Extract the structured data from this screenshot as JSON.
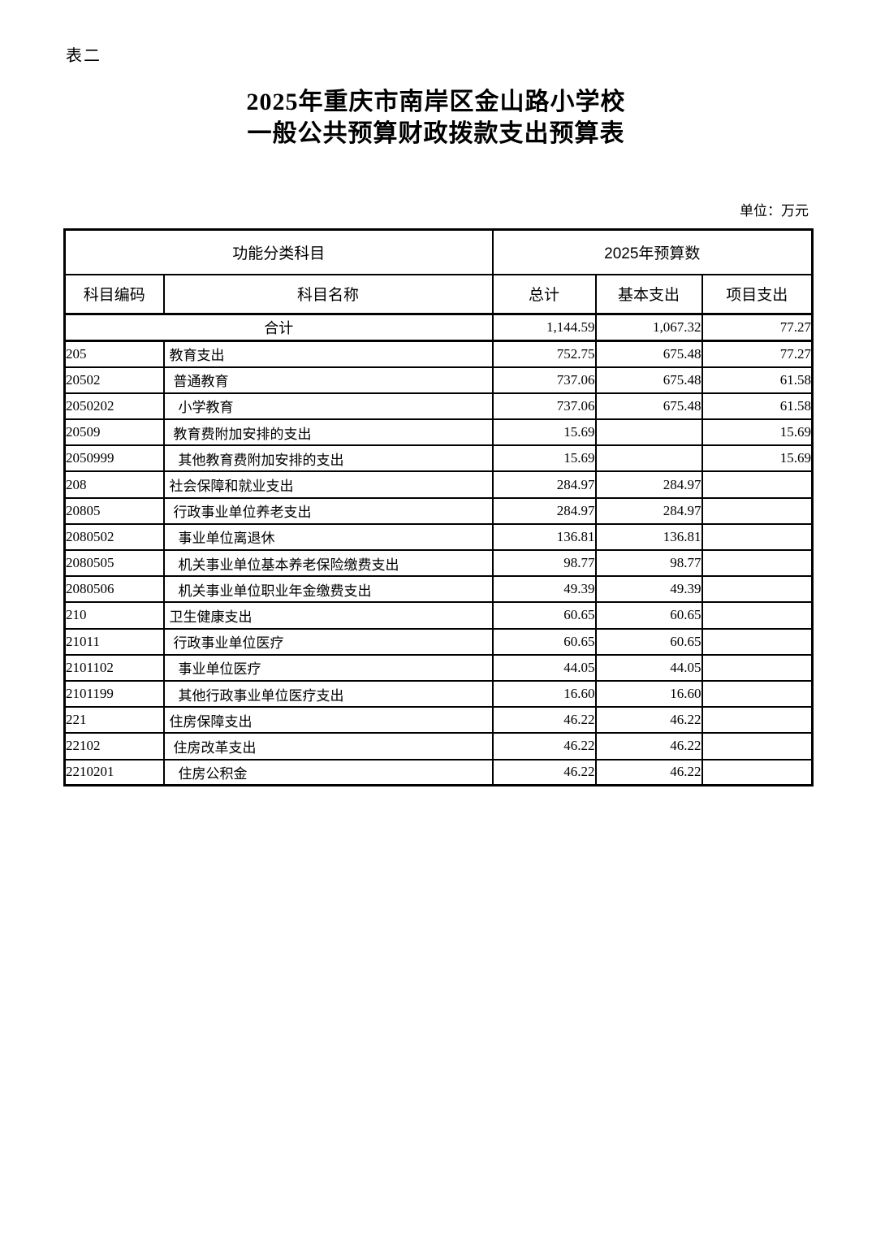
{
  "page": {
    "corner_tag": "表二",
    "title_line1": "2025年重庆市南岸区金山路小学校",
    "title_line2": "一般公共预算财政拨款支出预算表",
    "unit_note": "单位：万元"
  },
  "table": {
    "group_headers": {
      "function_classification": "功能分类科目",
      "budget_2025": "2025年预算数"
    },
    "columns": {
      "code": "科目编码",
      "name": "科目名称",
      "total": "总计",
      "basic": "基本支出",
      "project": "项目支出"
    },
    "total_row": {
      "label": "合计",
      "total": "1,144.59",
      "basic": "1,067.32",
      "project": "77.27"
    },
    "rows": [
      {
        "code": "205",
        "name": "教育支出",
        "level": 1,
        "total": "752.75",
        "basic": "675.48",
        "project": "77.27"
      },
      {
        "code": "20502",
        "name": "普通教育",
        "level": 2,
        "total": "737.06",
        "basic": "675.48",
        "project": "61.58"
      },
      {
        "code": "2050202",
        "name": "小学教育",
        "level": 3,
        "total": "737.06",
        "basic": "675.48",
        "project": "61.58"
      },
      {
        "code": "20509",
        "name": "教育费附加安排的支出",
        "level": 2,
        "total": "15.69",
        "basic": "",
        "project": "15.69"
      },
      {
        "code": "2050999",
        "name": "其他教育费附加安排的支出",
        "level": 3,
        "total": "15.69",
        "basic": "",
        "project": "15.69"
      },
      {
        "code": "208",
        "name": "社会保障和就业支出",
        "level": 1,
        "total": "284.97",
        "basic": "284.97",
        "project": ""
      },
      {
        "code": "20805",
        "name": "行政事业单位养老支出",
        "level": 2,
        "total": "284.97",
        "basic": "284.97",
        "project": ""
      },
      {
        "code": "2080502",
        "name": "事业单位离退休",
        "level": 3,
        "total": "136.81",
        "basic": "136.81",
        "project": ""
      },
      {
        "code": "2080505",
        "name": "机关事业单位基本养老保险缴费支出",
        "level": 3,
        "total": "98.77",
        "basic": "98.77",
        "project": ""
      },
      {
        "code": "2080506",
        "name": "机关事业单位职业年金缴费支出",
        "level": 3,
        "total": "49.39",
        "basic": "49.39",
        "project": ""
      },
      {
        "code": "210",
        "name": "卫生健康支出",
        "level": 1,
        "total": "60.65",
        "basic": "60.65",
        "project": ""
      },
      {
        "code": "21011",
        "name": "行政事业单位医疗",
        "level": 2,
        "total": "60.65",
        "basic": "60.65",
        "project": ""
      },
      {
        "code": "2101102",
        "name": "事业单位医疗",
        "level": 3,
        "total": "44.05",
        "basic": "44.05",
        "project": ""
      },
      {
        "code": "2101199",
        "name": "其他行政事业单位医疗支出",
        "level": 3,
        "total": "16.60",
        "basic": "16.60",
        "project": ""
      },
      {
        "code": "221",
        "name": "住房保障支出",
        "level": 1,
        "total": "46.22",
        "basic": "46.22",
        "project": ""
      },
      {
        "code": "22102",
        "name": "住房改革支出",
        "level": 2,
        "total": "46.22",
        "basic": "46.22",
        "project": ""
      },
      {
        "code": "2210201",
        "name": "住房公积金",
        "level": 3,
        "total": "46.22",
        "basic": "46.22",
        "project": ""
      }
    ]
  }
}
